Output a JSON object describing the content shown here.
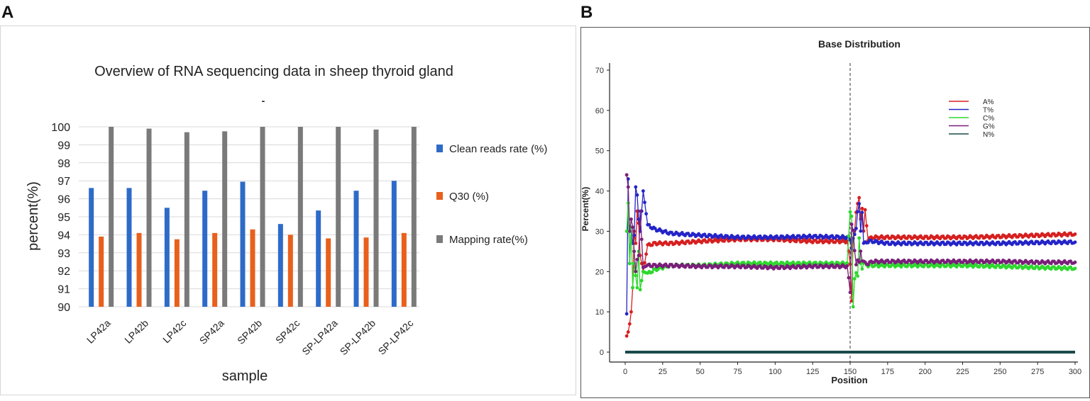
{
  "panels": {
    "a_label": "A",
    "b_label": "B"
  },
  "chart_data": [
    {
      "type": "bar",
      "title": "Overview of RNA sequencing data in sheep thyroid gland",
      "subtitle": "-",
      "xlabel": "sample",
      "ylabel": "percent(%)",
      "ylim": [
        90,
        100
      ],
      "yticks": [
        "90",
        "91",
        "92",
        "93",
        "94",
        "95",
        "96",
        "97",
        "98",
        "99",
        "100"
      ],
      "categories": [
        "LP42a",
        "LP42b",
        "LP42c",
        "SP42a",
        "SP42b",
        "SP42c",
        "SP-LP42a",
        "SP-LP42b",
        "SP-LP42c"
      ],
      "series": [
        {
          "name": "Clean reads rate (%)",
          "color": "#2e6bc8",
          "values": [
            96.6,
            96.6,
            95.5,
            96.45,
            96.95,
            94.6,
            95.35,
            96.45,
            97.0
          ]
        },
        {
          "name": "Q30 (%)",
          "color": "#e8601c",
          "values": [
            93.9,
            94.1,
            93.75,
            94.1,
            94.3,
            94.0,
            93.8,
            93.85,
            94.1
          ]
        },
        {
          "name": "Mapping rate(%)",
          "color": "#7a7a7a",
          "values": [
            100.0,
            99.9,
            99.7,
            99.75,
            100.0,
            100.0,
            100.0,
            99.85,
            100.0
          ]
        }
      ],
      "legend_position": "right",
      "grid": true
    },
    {
      "type": "line",
      "title": "Base Distribution",
      "xlabel": "Position",
      "ylabel": "Percent(%)",
      "xlim": [
        0,
        300
      ],
      "ylim": [
        0,
        70
      ],
      "xticks": [
        "0",
        "25",
        "50",
        "75",
        "100",
        "125",
        "150",
        "175",
        "200",
        "225",
        "250",
        "275",
        "300"
      ],
      "yticks": [
        "0",
        "10",
        "20",
        "30",
        "40",
        "50",
        "60",
        "70"
      ],
      "vline_x": 150,
      "legend_position": "top-right",
      "series": [
        {
          "name": "A%",
          "color": "#d62020",
          "x": [
            1,
            2,
            3,
            4,
            5,
            6,
            7,
            8,
            9,
            10,
            12,
            15,
            20,
            30,
            50,
            75,
            100,
            125,
            148,
            150,
            151,
            152,
            153,
            154,
            155,
            156,
            157,
            158,
            159,
            160,
            162,
            165,
            175,
            200,
            225,
            250,
            275,
            300
          ],
          "y": [
            4,
            5,
            7,
            10,
            16,
            30,
            27,
            35,
            32,
            24,
            20,
            26.5,
            27,
            27,
            27.5,
            28,
            28,
            27.5,
            27.5,
            22,
            13,
            28,
            30,
            35,
            37,
            38,
            33,
            36,
            30,
            35,
            28,
            28.5,
            28.5,
            28.5,
            28.5,
            28.7,
            29,
            29.3
          ]
        },
        {
          "name": "T%",
          "color": "#2424c8",
          "x": [
            1,
            2,
            3,
            4,
            5,
            6,
            7,
            8,
            9,
            10,
            12,
            15,
            20,
            30,
            50,
            75,
            100,
            125,
            148,
            150,
            151,
            152,
            153,
            154,
            155,
            156,
            157,
            158,
            159,
            160,
            162,
            165,
            175,
            200,
            225,
            250,
            275,
            300
          ],
          "y": [
            9.5,
            43,
            22,
            31,
            27,
            29,
            41,
            39,
            33,
            30,
            40,
            31.5,
            30.5,
            29.5,
            29,
            28.5,
            28.5,
            28.7,
            28.5,
            28,
            26,
            28,
            29,
            31,
            35,
            36.5,
            30,
            35,
            27,
            27,
            27.5,
            27.5,
            27,
            27,
            27,
            27,
            27.2,
            27.3
          ]
        },
        {
          "name": "C%",
          "color": "#2ed82e",
          "x": [
            1,
            2,
            3,
            4,
            5,
            6,
            7,
            8,
            9,
            10,
            12,
            15,
            20,
            30,
            50,
            75,
            100,
            125,
            148,
            150,
            151,
            152,
            153,
            154,
            155,
            156,
            157,
            158,
            159,
            160,
            162,
            165,
            175,
            200,
            225,
            250,
            275,
            300
          ],
          "y": [
            30,
            37,
            22,
            31,
            16,
            22,
            19,
            16,
            25,
            15.5,
            20,
            19.5,
            20.5,
            21.5,
            21.5,
            22,
            22,
            22,
            22,
            35,
            34,
            11,
            18,
            20,
            19,
            28,
            22,
            21,
            22,
            22,
            21.5,
            21.5,
            21.5,
            21.5,
            21.5,
            21.3,
            21,
            20.8
          ]
        },
        {
          "name": "G%",
          "color": "#7a1f7a",
          "x": [
            1,
            2,
            3,
            4,
            5,
            6,
            7,
            8,
            9,
            10,
            12,
            15,
            20,
            30,
            50,
            75,
            100,
            125,
            148,
            150,
            151,
            152,
            153,
            154,
            155,
            156,
            157,
            158,
            159,
            160,
            162,
            165,
            175,
            200,
            225,
            250,
            275,
            300
          ],
          "y": [
            44,
            41,
            30,
            33,
            31,
            25,
            20,
            23,
            24,
            35,
            21,
            21.5,
            21.5,
            21.5,
            21.3,
            21.3,
            21,
            21.3,
            21.3,
            15,
            32,
            30,
            25,
            22,
            23,
            22,
            25,
            23,
            22.5,
            22,
            22,
            22.5,
            22.5,
            22.5,
            22.5,
            22.5,
            22.3,
            22.3
          ]
        },
        {
          "name": "N%",
          "color": "#1a4a4a",
          "x": [
            0,
            300
          ],
          "y": [
            0,
            0
          ]
        }
      ]
    }
  ]
}
